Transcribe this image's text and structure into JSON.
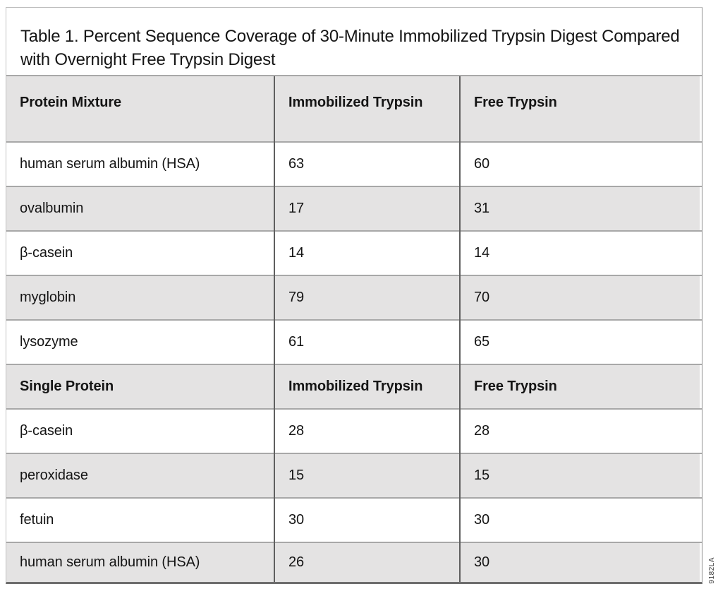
{
  "title": "Table 1. Percent Sequence Coverage of 30-Minute Immobilized Trypsin Digest Compared with Overnight Free Trypsin Digest",
  "part_number": "9182LA",
  "colors": {
    "row_shade": "#e4e3e3",
    "column_border": "#5f5f5f",
    "row_border": "#a8a8a8",
    "bottom_border": "#6e6e6e"
  },
  "table": {
    "sections": [
      {
        "label": "Protein Mixture",
        "col_immobilized": "Immobilized Trypsin",
        "col_free": "Free Trypsin",
        "rows": [
          {
            "protein": "human serum albumin (HSA)",
            "immobilized": "63",
            "free": "60"
          },
          {
            "protein": "ovalbumin",
            "immobilized": "17",
            "free": "31"
          },
          {
            "protein": "β-casein",
            "immobilized": "14",
            "free": "14"
          },
          {
            "protein": "myglobin",
            "immobilized": "79",
            "free": "70"
          },
          {
            "protein": "lysozyme",
            "immobilized": "61",
            "free": "65"
          }
        ]
      },
      {
        "label": "Single Protein",
        "col_immobilized": "Immobilized Trypsin",
        "col_free": "Free Trypsin",
        "rows": [
          {
            "protein": "β-casein",
            "immobilized": "28",
            "free": "28"
          },
          {
            "protein": "peroxidase",
            "immobilized": "15",
            "free": "15"
          },
          {
            "protein": "fetuin",
            "immobilized": "30",
            "free": "30"
          },
          {
            "protein": "human serum albumin (HSA)",
            "immobilized": "26",
            "free": "30"
          }
        ]
      }
    ]
  }
}
